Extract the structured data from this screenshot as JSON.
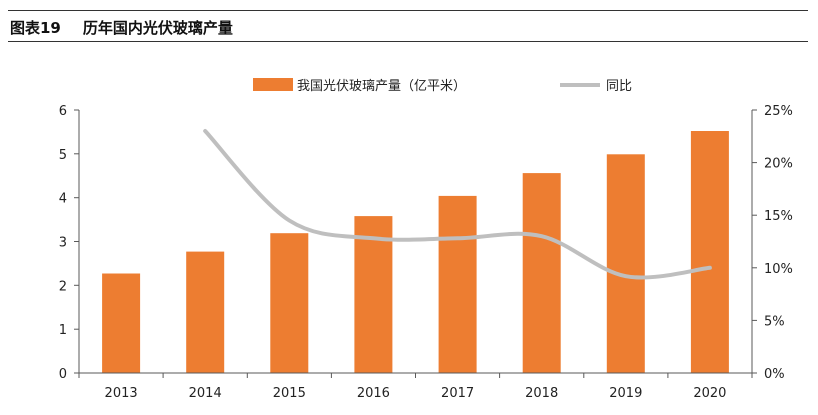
{
  "figure": {
    "label": "图表19",
    "title": "历年国内光伏玻璃产量"
  },
  "colors": {
    "bar": "#ED7D31",
    "line": "#BFBFBF",
    "axis": "#595959",
    "text": "#222222"
  },
  "chart_data": {
    "type": "bar",
    "title": "历年国内光伏玻璃产量",
    "categories": [
      "2013",
      "2014",
      "2015",
      "2016",
      "2017",
      "2018",
      "2019",
      "2020"
    ],
    "series": [
      {
        "name": "我国光伏玻璃产量（亿平米）",
        "type": "bar",
        "axis": "left",
        "values": [
          2.27,
          2.77,
          3.19,
          3.58,
          4.04,
          4.56,
          4.99,
          5.52
        ]
      },
      {
        "name": "同比",
        "type": "line",
        "axis": "right",
        "values": [
          null,
          23.0,
          14.5,
          12.8,
          12.8,
          13.0,
          9.2,
          10.0
        ]
      }
    ],
    "left_axis": {
      "ylim": [
        0,
        6
      ],
      "ticks": [
        "0",
        "1",
        "2",
        "3",
        "4",
        "5",
        "6"
      ]
    },
    "right_axis": {
      "ylim": [
        0,
        25
      ],
      "ticks": [
        "0%",
        "5%",
        "10%",
        "15%",
        "20%",
        "25%"
      ]
    },
    "legend": {
      "position": "top",
      "entries": [
        "我国光伏玻璃产量（亿平米）",
        "同比"
      ]
    },
    "grid": false
  }
}
